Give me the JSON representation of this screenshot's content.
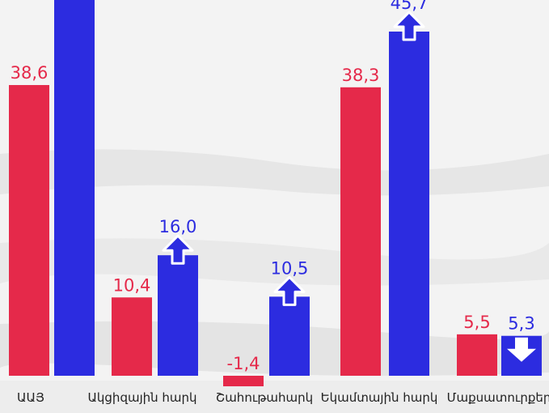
{
  "chart_data": {
    "type": "bar",
    "categories": [
      "ԱԱՅ",
      "Ակցիզային հարկ",
      "Շահութահարկ",
      "Եկամտային հարկ",
      "Մաքսատուրքեր"
    ],
    "series": [
      {
        "values": [
          38.6,
          10.4,
          -1.4,
          38.3,
          5.5
        ],
        "labels": [
          "38,6",
          "10,4",
          "-1,4",
          "38,3",
          "5,5"
        ],
        "color": "#e5294a"
      },
      {
        "values": [
          60.0,
          16.0,
          10.5,
          45.7,
          5.3
        ],
        "labels": [
          "",
          "16,0",
          "10,5",
          "45,7",
          "5,3"
        ],
        "color": "#2c2ce0"
      }
    ],
    "trend_arrows": [
      "up",
      "up",
      "up",
      "up",
      "down"
    ],
    "title": "",
    "xlabel": "",
    "ylabel": ""
  },
  "colors": {
    "red_series": "#e5294a",
    "blue_series": "#2c2ce0",
    "arrow_outline": "#ffffff"
  }
}
